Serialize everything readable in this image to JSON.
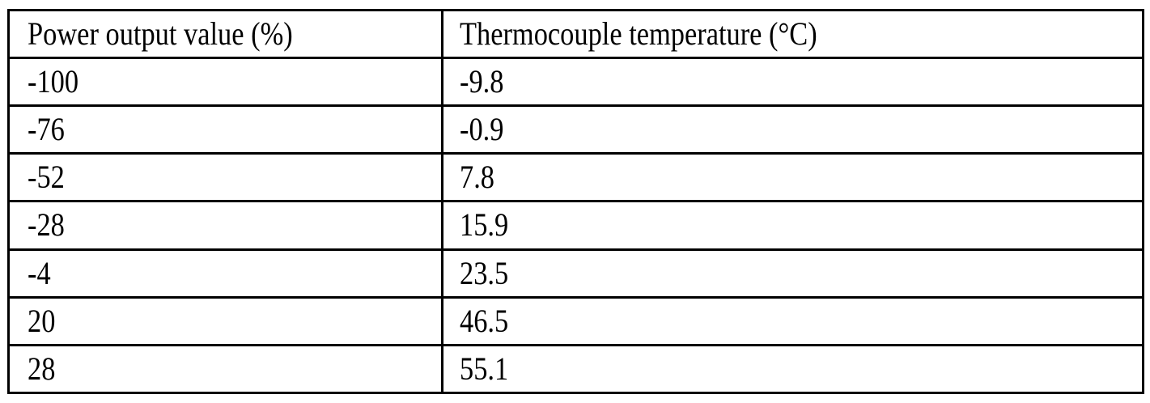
{
  "table": {
    "headers": [
      "Power output value (%)",
      "Thermocouple temperature (°C)"
    ],
    "rows": [
      [
        "-100",
        "-9.8"
      ],
      [
        "-76",
        "-0.9"
      ],
      [
        "-52",
        "7.8"
      ],
      [
        "-28",
        "15.9"
      ],
      [
        "-4",
        "23.5"
      ],
      [
        "20",
        "46.5"
      ],
      [
        "28",
        "55.1"
      ]
    ]
  },
  "colors": {
    "border": "#000000",
    "text": "#000000",
    "background": "#ffffff"
  }
}
